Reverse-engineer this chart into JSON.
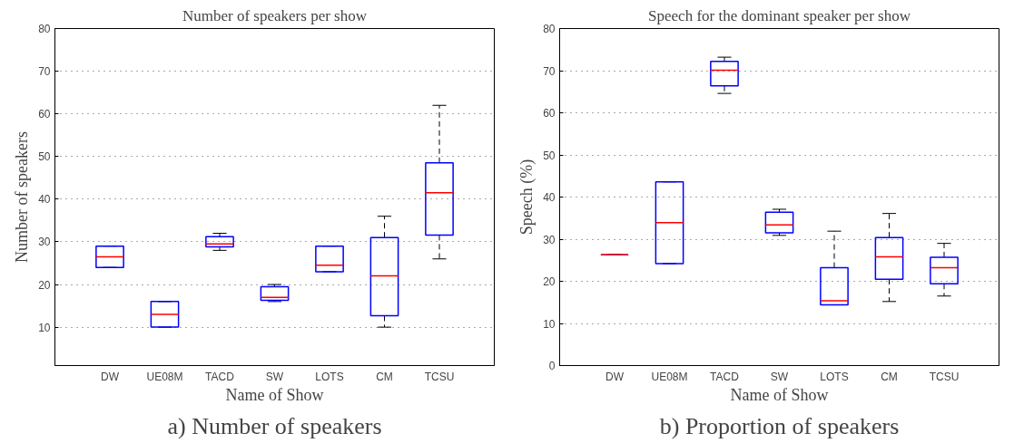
{
  "chart_data": [
    {
      "type": "box",
      "title": "Number of speakers per show",
      "xlabel": "Name of Show",
      "ylabel": "Number of speakers",
      "categories": [
        "DW",
        "UE08M",
        "TACD",
        "SW",
        "LOTS",
        "CM",
        "TCSU"
      ],
      "ylim": [
        1,
        80
      ],
      "yticks": [
        10,
        20,
        30,
        40,
        50,
        60,
        70,
        80
      ],
      "grid": "y",
      "series": [
        {
          "color": "#0000ff",
          "boxes": [
            {
              "low": 24,
              "q1": 24,
              "median": 26.5,
              "q3": 29,
              "high": 29
            },
            {
              "low": 10,
              "q1": 10,
              "median": 13,
              "q3": 16,
              "high": 16
            },
            {
              "low": 28,
              "q1": 28.8,
              "median": 29.5,
              "q3": 31.2,
              "high": 32
            },
            {
              "low": 16,
              "q1": 16.3,
              "median": 17,
              "q3": 19.5,
              "high": 20
            },
            {
              "low": 23,
              "q1": 23,
              "median": 24.5,
              "q3": 29,
              "high": 29
            },
            {
              "low": 10,
              "q1": 12.7,
              "median": 22,
              "q3": 31,
              "high": 36
            },
            {
              "low": 26,
              "q1": 31.6,
              "median": 41.5,
              "q3": 48.5,
              "high": 62
            }
          ]
        }
      ],
      "annotations": [
        "a) Number of speakers"
      ]
    },
    {
      "type": "box",
      "title": "Speech for the dominant speaker per show",
      "xlabel": "Name of Show",
      "ylabel": "Speech (%)",
      "categories": [
        "DW",
        "UE08M",
        "TACD",
        "SW",
        "LOTS",
        "CM",
        "TCSU"
      ],
      "ylim": [
        0,
        80
      ],
      "yticks": [
        0,
        10,
        20,
        30,
        40,
        50,
        60,
        70,
        80
      ],
      "grid": "y",
      "series": [
        {
          "color": "#0000ff",
          "boxes": [
            {
              "low": 26.3,
              "q1": 26.3,
              "median": 26.3,
              "q3": 26.3,
              "high": 26.3
            },
            {
              "low": 24.2,
              "q1": 24.2,
              "median": 33.9,
              "q3": 43.6,
              "high": 43.6
            },
            {
              "low": 64.6,
              "q1": 66.4,
              "median": 70.1,
              "q3": 72.2,
              "high": 73.2
            },
            {
              "low": 30.9,
              "q1": 31.5,
              "median": 33.4,
              "q3": 36.4,
              "high": 37.1
            },
            {
              "low": 14.4,
              "q1": 14.4,
              "median": 15.4,
              "q3": 23.2,
              "high": 31.9
            },
            {
              "low": 15.2,
              "q1": 20.5,
              "median": 25.8,
              "q3": 30.4,
              "high": 36.1
            },
            {
              "low": 16.5,
              "q1": 19.4,
              "median": 23.2,
              "q3": 25.7,
              "high": 29.0
            }
          ]
        }
      ],
      "annotations": [
        "b) Proportion of speakers"
      ]
    }
  ]
}
